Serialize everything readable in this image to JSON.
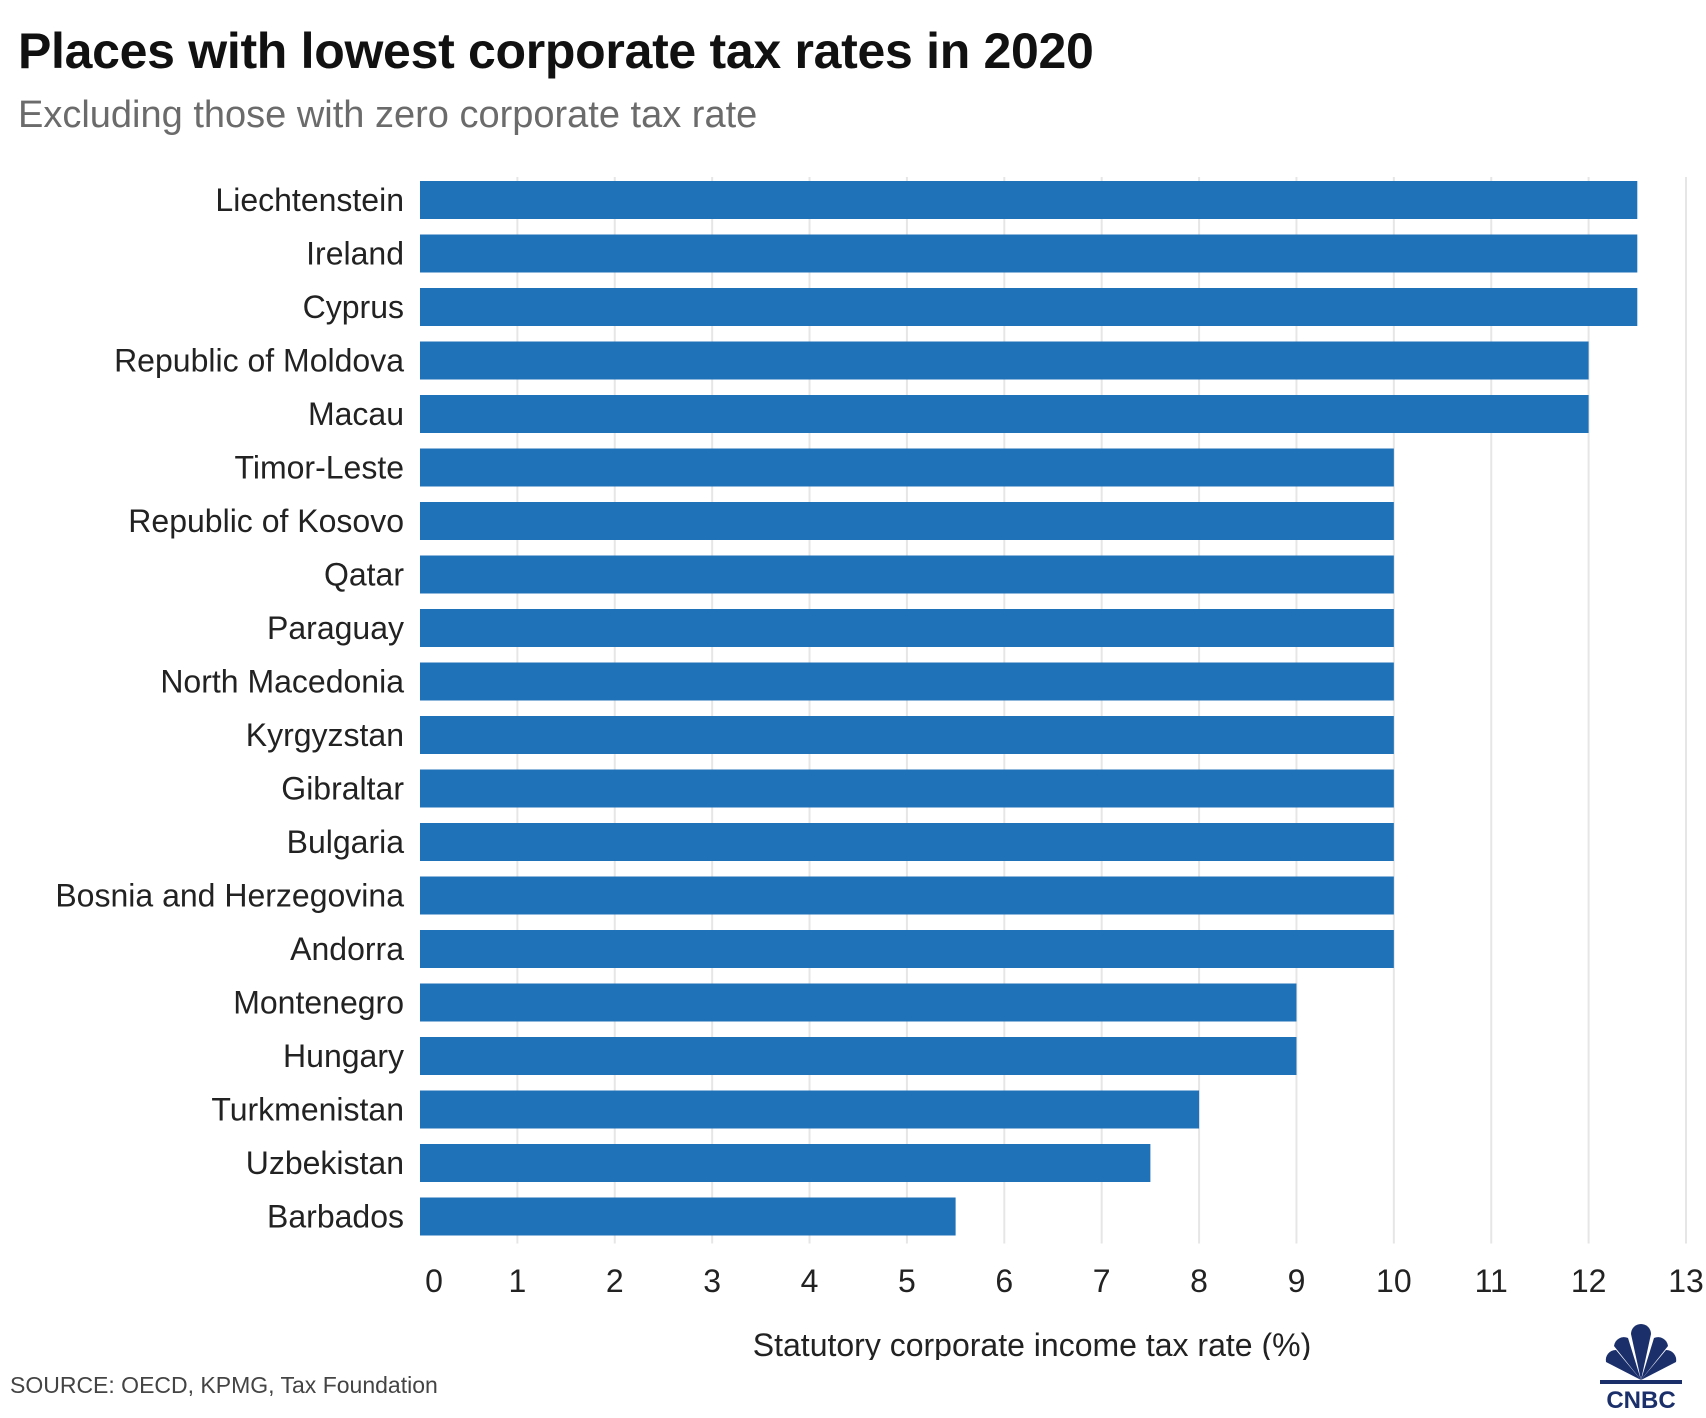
{
  "header": {
    "title": "Places with lowest corporate tax rates in 2020",
    "subtitle": "Excluding those with zero corporate tax rate"
  },
  "footer": {
    "source": "SOURCE: OECD, KPMG, Tax Foundation",
    "logo_text": "CNBC"
  },
  "colors": {
    "bar": "#1f72b8",
    "grid": "#e6e6e6",
    "label": "#222222",
    "title": "#111111",
    "subtitle": "#6b6b6b"
  },
  "chart_data": {
    "type": "bar",
    "orientation": "horizontal",
    "title": "Places with lowest corporate tax rates in 2020",
    "subtitle": "Excluding those with zero corporate tax rate",
    "xlabel": "Statutory corporate income tax rate (%)",
    "ylabel": "",
    "xlim": [
      0,
      13
    ],
    "xticks": [
      0,
      1,
      2,
      3,
      4,
      5,
      6,
      7,
      8,
      9,
      10,
      11,
      12,
      13
    ],
    "grid": "vertical",
    "categories": [
      "Liechtenstein",
      "Ireland",
      "Cyprus",
      "Republic of Moldova",
      "Macau",
      "Timor-Leste",
      "Republic of Kosovo",
      "Qatar",
      "Paraguay",
      "North Macedonia",
      "Kyrgyzstan",
      "Gibraltar",
      "Bulgaria",
      "Bosnia and Herzegovina",
      "Andorra",
      "Montenegro",
      "Hungary",
      "Turkmenistan",
      "Uzbekistan",
      "Barbados"
    ],
    "values": [
      12.5,
      12.5,
      12.5,
      12,
      12,
      10,
      10,
      10,
      10,
      10,
      10,
      10,
      10,
      10,
      10,
      9,
      9,
      8,
      7.5,
      5.5
    ]
  }
}
